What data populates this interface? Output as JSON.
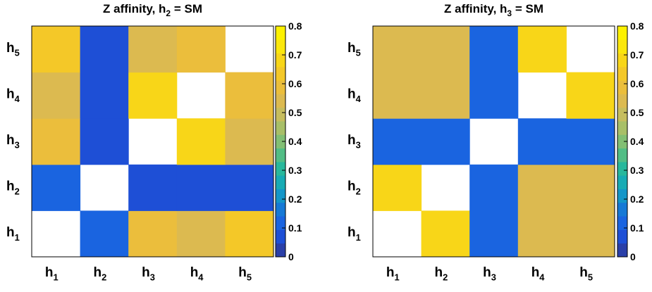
{
  "chart_data": [
    {
      "type": "heatmap",
      "title_main": "Z affinity, h",
      "title_sub": "2",
      "title_tail": " = SM",
      "x_labels": [
        {
          "main": "h",
          "sub": "1"
        },
        {
          "main": "h",
          "sub": "2"
        },
        {
          "main": "h",
          "sub": "3"
        },
        {
          "main": "h",
          "sub": "4"
        },
        {
          "main": "h",
          "sub": "5"
        }
      ],
      "y_labels": [
        {
          "main": "h",
          "sub": "1"
        },
        {
          "main": "h",
          "sub": "2"
        },
        {
          "main": "h",
          "sub": "3"
        },
        {
          "main": "h",
          "sub": "4"
        },
        {
          "main": "h",
          "sub": "5"
        }
      ],
      "zlim": [
        0,
        0.8
      ],
      "colorbar_ticks": [
        "0",
        "0.1",
        "0.2",
        "0.3",
        "0.4",
        "0.5",
        "0.6",
        "0.7",
        "0.8"
      ],
      "values": [
        [
          null,
          0.13,
          0.6,
          0.52,
          0.65
        ],
        [
          0.13,
          null,
          0.09,
          0.09,
          0.09
        ],
        [
          0.6,
          0.09,
          null,
          0.66,
          0.52
        ],
        [
          0.52,
          0.09,
          0.66,
          null,
          0.6
        ],
        [
          0.65,
          0.09,
          0.52,
          0.61,
          null
        ]
      ]
    },
    {
      "type": "heatmap",
      "title_main": "Z affinity, h",
      "title_sub": "3",
      "title_tail": " = SM",
      "x_labels": [
        {
          "main": "h",
          "sub": "1"
        },
        {
          "main": "h",
          "sub": "2"
        },
        {
          "main": "h",
          "sub": "3"
        },
        {
          "main": "h",
          "sub": "4"
        },
        {
          "main": "h",
          "sub": "5"
        }
      ],
      "y_labels": [
        {
          "main": "h",
          "sub": "1"
        },
        {
          "main": "h",
          "sub": "2"
        },
        {
          "main": "h",
          "sub": "3"
        },
        {
          "main": "h",
          "sub": "4"
        },
        {
          "main": "h",
          "sub": "5"
        }
      ],
      "zlim": [
        0,
        0.8
      ],
      "colorbar_ticks": [
        "0",
        "0.1",
        "0.2",
        "0.3",
        "0.4",
        "0.5",
        "0.6",
        "0.7",
        "0.8"
      ],
      "values": [
        [
          null,
          0.69,
          0.13,
          0.53,
          0.56
        ],
        [
          0.69,
          null,
          0.13,
          0.56,
          0.53
        ],
        [
          0.13,
          0.13,
          null,
          0.13,
          0.1
        ],
        [
          0.53,
          0.56,
          0.13,
          null,
          0.69
        ],
        [
          0.56,
          0.53,
          0.1,
          0.69,
          null
        ]
      ]
    }
  ]
}
